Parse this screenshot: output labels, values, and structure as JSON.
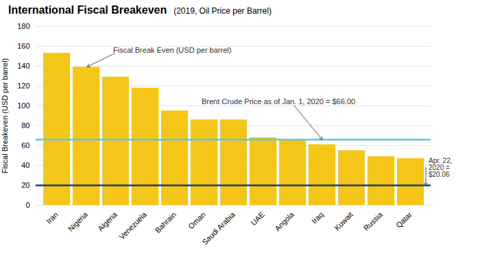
{
  "chart_data": {
    "type": "bar",
    "title": "International Fiscal Breakeven",
    "subtitle": "(2019, Oil Price per Barrel)",
    "ylabel": "Fiscal Breakeven (USD per barrel)",
    "categories": [
      "Iran",
      "Nigeria",
      "Algeria",
      "Venezuela",
      "Bahrain",
      "Oman",
      "Saudi Arabia",
      "UAE",
      "Angola",
      "Iraq",
      "Kuwait",
      "Russia",
      "Qatar"
    ],
    "values": [
      153,
      139,
      129,
      118,
      95,
      86,
      86,
      68,
      65,
      61,
      55,
      49,
      47
    ],
    "color": "#F5C518",
    "ylim": [
      0,
      180
    ],
    "yticks": [
      0,
      20,
      40,
      60,
      80,
      100,
      120,
      140,
      160,
      180
    ],
    "grid": true,
    "reference_lines": [
      {
        "value": 66.0,
        "color": "#5BC8E8",
        "label": "Brent Crude Price as of Jan. 1, 2020 = $66.00"
      },
      {
        "value": 20.06,
        "color": "#1B3A6B",
        "label": "Apr. 22,\n2020 =\n$20.06"
      }
    ],
    "annotations": [
      {
        "text": "Fiscal Break Even (USD per barrel)",
        "category": "Nigeria"
      }
    ]
  }
}
